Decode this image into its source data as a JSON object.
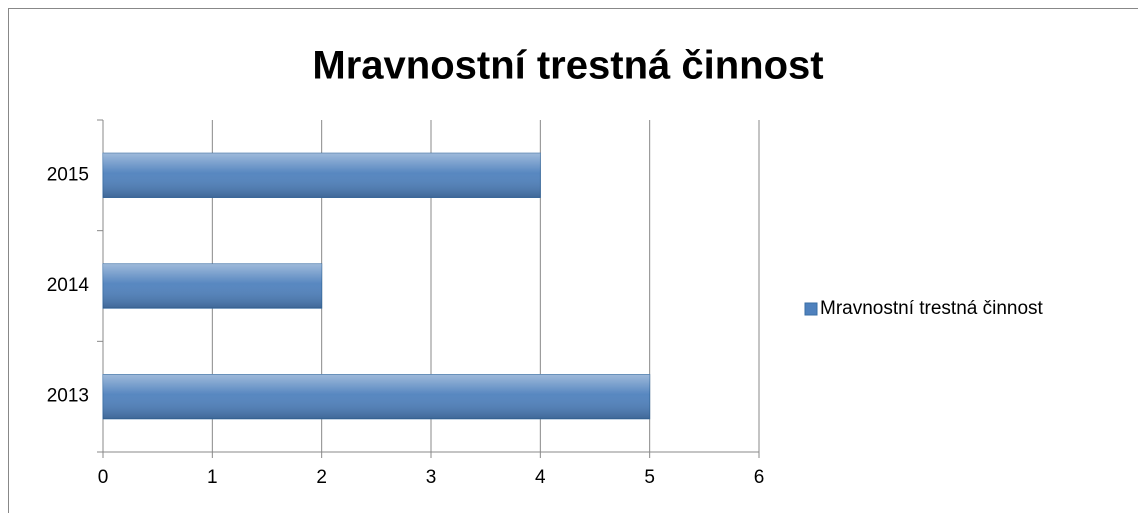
{
  "chart_data": {
    "type": "bar",
    "orientation": "horizontal",
    "title": "Mravnostní trestná činnost",
    "categories": [
      "2013",
      "2014",
      "2015"
    ],
    "series": [
      {
        "name": "Mravnostní trestná činnost",
        "color": "#4f81bd",
        "values": [
          5,
          2,
          4
        ]
      }
    ],
    "xlim": [
      0,
      6
    ],
    "xticks": [
      0,
      1,
      2,
      3,
      4,
      5,
      6
    ],
    "grid": true,
    "legend": "right"
  }
}
